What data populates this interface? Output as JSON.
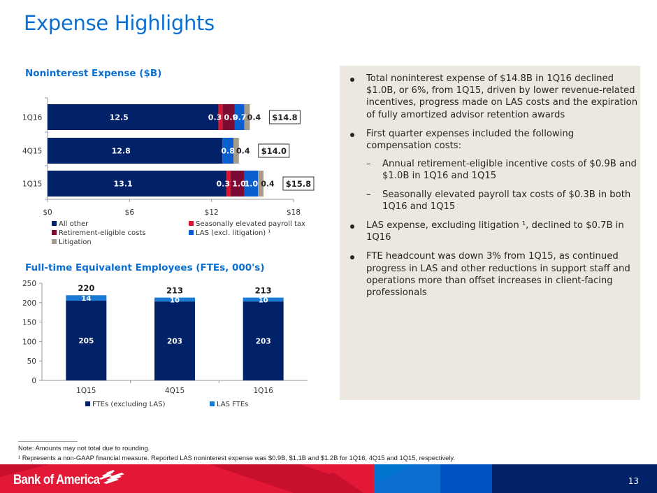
{
  "page": {
    "title": "Expense Highlights",
    "page_number": "13",
    "brand": "Bank of America"
  },
  "colors": {
    "title_blue": "#0a6fd1",
    "all_other": "#012169",
    "payroll_tax": "#dc1431",
    "retirement": "#7b0b33",
    "las": "#0a5fd0",
    "litigation": "#a69b8c",
    "fte_excl_las": "#012169",
    "las_ftes": "#1b7ad6",
    "panel_bg": "#ece8df"
  },
  "chart_data": [
    {
      "type": "bar",
      "orientation": "horizontal",
      "stacked": true,
      "title": "Noninterest Expense ($B)",
      "categories": [
        "1Q16",
        "4Q15",
        "1Q15"
      ],
      "series": [
        {
          "name": "All other",
          "values": [
            12.5,
            12.8,
            13.1
          ],
          "labels": [
            "12.5",
            "12.8",
            "13.1"
          ]
        },
        {
          "name": "Seasonally elevated payroll tax",
          "values": [
            0.3,
            0,
            0.3
          ],
          "labels": [
            "0.3",
            "",
            "0.3"
          ]
        },
        {
          "name": "Retirement-eligible costs",
          "values": [
            0.9,
            0,
            1.0
          ],
          "labels": [
            "0.9",
            "",
            "1.0"
          ]
        },
        {
          "name": "LAS (excl. litigation) 1",
          "values": [
            0.7,
            0.8,
            1.0
          ],
          "labels": [
            "0.7",
            "0.8",
            "1.0"
          ]
        },
        {
          "name": "Litigation",
          "values": [
            0.4,
            0.4,
            0.4
          ],
          "labels": [
            "0.4",
            "0.4",
            "0.4"
          ]
        }
      ],
      "totals": [
        "$14.8",
        "$14.0",
        "$15.8"
      ],
      "xlim": [
        0,
        18
      ],
      "x_ticks": [
        "$0",
        "$6",
        "$12",
        "$18"
      ],
      "x_tick_values": [
        0,
        6,
        12,
        18
      ],
      "grid": false,
      "legend": {
        "placement": "bottom",
        "entries": [
          "All other",
          "Seasonally elevated payroll tax",
          "Retirement-eligible costs",
          "LAS (excl. litigation) ¹",
          "Litigation"
        ]
      }
    },
    {
      "type": "bar",
      "orientation": "vertical",
      "stacked": true,
      "title": "Full-time Equivalent Employees (FTEs, 000's)",
      "categories": [
        "1Q15",
        "4Q15",
        "1Q16"
      ],
      "series": [
        {
          "name": "FTEs (excluding LAS)",
          "values": [
            205,
            203,
            203
          ],
          "labels": [
            "205",
            "203",
            "203"
          ]
        },
        {
          "name": "LAS FTEs",
          "values": [
            14,
            10,
            10
          ],
          "labels": [
            "14",
            "10",
            "10"
          ]
        }
      ],
      "totals": [
        "220",
        "213",
        "213"
      ],
      "ylim": [
        0,
        250
      ],
      "y_ticks": [
        "0",
        "50",
        "100",
        "150",
        "200",
        "250"
      ],
      "y_tick_values": [
        0,
        50,
        100,
        150,
        200,
        250
      ],
      "grid": false,
      "legend": {
        "placement": "bottom",
        "entries": [
          "FTEs (excluding LAS)",
          "LAS FTEs"
        ]
      }
    }
  ],
  "highlights": {
    "bullets": [
      {
        "level": 1,
        "text": "Total noninterest expense of $14.8B in 1Q16 declined $1.0B, or 6%, from 1Q15, driven by lower revenue-related incentives, progress made on LAS costs and the expiration of fully amortized advisor retention awards"
      },
      {
        "level": 1,
        "text": "First quarter expenses included the following compensation costs:"
      },
      {
        "level": 2,
        "text": "Annual retirement-eligible incentive costs of $0.9B and $1.0B in 1Q16 and 1Q15"
      },
      {
        "level": 2,
        "text": "Seasonally elevated payroll tax costs of $0.3B in both 1Q16 and 1Q15"
      },
      {
        "level": 1,
        "text": "LAS expense, excluding litigation ¹, declined to $0.7B in 1Q16"
      },
      {
        "level": 1,
        "text": "FTE headcount was down 3% from 1Q15, as continued progress in LAS and other reductions in support staff and operations more than offset increases in client-facing professionals"
      }
    ],
    "dash_glyph": "–"
  },
  "notes": {
    "note1": "Note: Amounts may not total due to rounding.",
    "note2": "¹ Represents a non-GAAP financial measure. Reported LAS noninterest expense was $0.9B, $1.1B and $1.2B for 1Q16, 4Q15 and 1Q15, respectively."
  }
}
